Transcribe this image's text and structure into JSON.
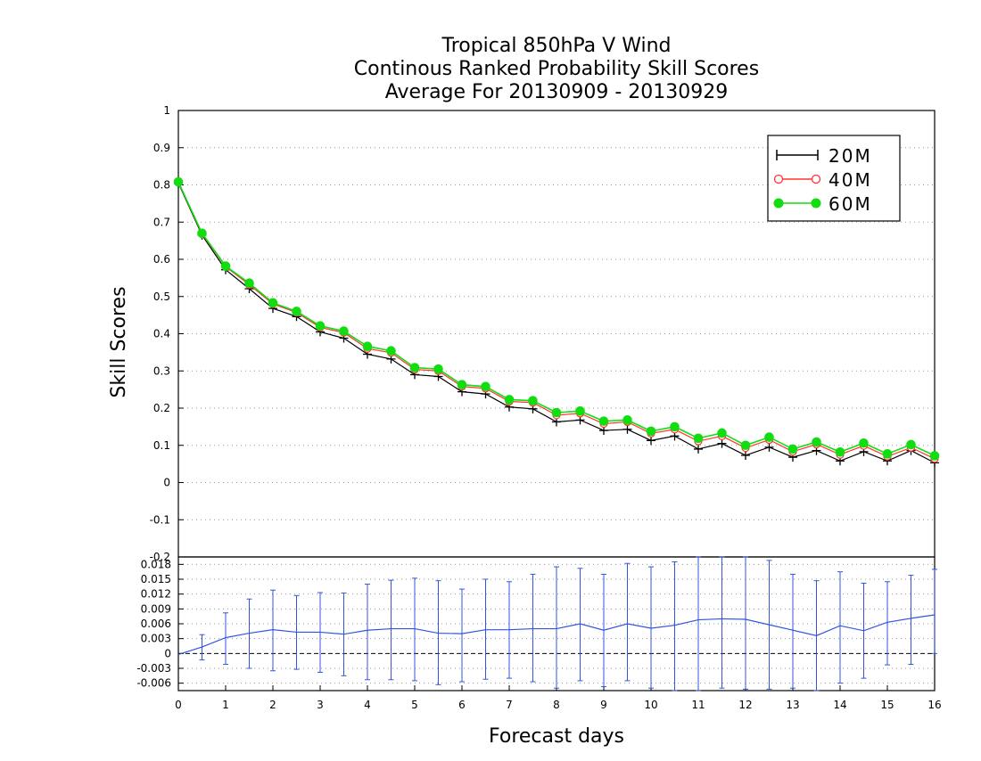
{
  "chart_data": [
    {
      "type": "line",
      "title": "Tropical 850hPa V Wind",
      "subtitle": "Continous Ranked Probability Skill Scores",
      "subtitle2": "Average For 20130909 - 20130929",
      "xlabel": "Forecast days",
      "ylabel": "Skill Scores",
      "xlim": [
        0,
        16
      ],
      "ylim": [
        -0.2,
        1
      ],
      "yticks": [
        "-0.2",
        "-0.1",
        "0",
        "0.1",
        "0.2",
        "0.3",
        "0.4",
        "0.5",
        "0.6",
        "0.7",
        "0.8",
        "0.9",
        "1"
      ],
      "grid": true,
      "legend_position": "top-right",
      "x": [
        0,
        0.5,
        1,
        1.5,
        2,
        2.5,
        3,
        3.5,
        4,
        4.5,
        5,
        5.5,
        6,
        6.5,
        7,
        7.5,
        8,
        8.5,
        9,
        9.5,
        10,
        10.5,
        11,
        11.5,
        12,
        12.5,
        13,
        13.5,
        14,
        14.5,
        15,
        15.5,
        16
      ],
      "series": [
        {
          "name": "20M",
          "color": "#000000",
          "marker": "plus",
          "values": [
            0.805,
            0.665,
            0.572,
            0.521,
            0.468,
            0.446,
            0.405,
            0.388,
            0.345,
            0.332,
            0.29,
            0.285,
            0.244,
            0.238,
            0.203,
            0.198,
            0.163,
            0.168,
            0.14,
            0.143,
            0.113,
            0.125,
            0.09,
            0.105,
            0.073,
            0.095,
            0.068,
            0.086,
            0.058,
            0.083,
            0.058,
            0.086,
            0.053
          ]
        },
        {
          "name": "40M",
          "color": "#ff3333",
          "marker": "open-circle",
          "values": [
            0.808,
            0.668,
            0.58,
            0.532,
            0.48,
            0.457,
            0.417,
            0.403,
            0.36,
            0.349,
            0.304,
            0.3,
            0.258,
            0.253,
            0.218,
            0.215,
            0.181,
            0.186,
            0.158,
            0.163,
            0.132,
            0.143,
            0.111,
            0.125,
            0.093,
            0.115,
            0.083,
            0.103,
            0.075,
            0.099,
            0.07,
            0.094,
            0.064
          ]
        },
        {
          "name": "60M",
          "color": "#11dd11",
          "marker": "filled-circle",
          "values": [
            0.808,
            0.67,
            0.582,
            0.536,
            0.483,
            0.46,
            0.421,
            0.407,
            0.366,
            0.354,
            0.309,
            0.305,
            0.263,
            0.258,
            0.223,
            0.22,
            0.188,
            0.192,
            0.165,
            0.168,
            0.138,
            0.15,
            0.119,
            0.133,
            0.1,
            0.122,
            0.09,
            0.109,
            0.082,
            0.106,
            0.077,
            0.102,
            0.072
          ]
        }
      ]
    },
    {
      "type": "line",
      "xlim": [
        0,
        16
      ],
      "ylim": [
        -0.0075,
        0.0195
      ],
      "xticks": [
        "0",
        "1",
        "2",
        "3",
        "4",
        "5",
        "6",
        "7",
        "8",
        "9",
        "10",
        "11",
        "12",
        "13",
        "14",
        "15",
        "16"
      ],
      "yticks": [
        "-0.006",
        "-0.003",
        "0",
        "0.003",
        "0.006",
        "0.009",
        "0.012",
        "0.015",
        "0.018"
      ],
      "grid": true,
      "zero_line": "dashed",
      "x": [
        0,
        0.5,
        1,
        1.5,
        2,
        2.5,
        3,
        3.5,
        4,
        4.5,
        5,
        5.5,
        6,
        6.5,
        7,
        7.5,
        8,
        8.5,
        9,
        9.5,
        10,
        10.5,
        11,
        11.5,
        12,
        12.5,
        13,
        13.5,
        14,
        14.5,
        15,
        15.5,
        16
      ],
      "series": [
        {
          "name": "",
          "color": "#3355dd",
          "values": [
            -0.0002,
            0.0013,
            0.0032,
            0.0041,
            0.0048,
            0.0043,
            0.0043,
            0.0039,
            0.0047,
            0.005,
            0.005,
            0.0041,
            0.004,
            0.0048,
            0.0048,
            0.005,
            0.005,
            0.006,
            0.0047,
            0.006,
            0.0051,
            0.0057,
            0.0068,
            0.007,
            0.0069,
            0.0058,
            0.0047,
            0.0036,
            0.0056,
            0.0046,
            0.0063,
            0.0071,
            0.0078
          ],
          "error_low": [
            0.0,
            -0.0013,
            -0.0022,
            -0.003,
            -0.0035,
            -0.0032,
            -0.0038,
            -0.0045,
            -0.0053,
            -0.0053,
            -0.0055,
            -0.0063,
            -0.0057,
            -0.0052,
            -0.005,
            -0.0057,
            -0.007,
            -0.0055,
            -0.0067,
            -0.0055,
            -0.007,
            -0.0075,
            -0.0075,
            -0.007,
            -0.0072,
            -0.0072,
            -0.007,
            -0.0075,
            -0.006,
            -0.005,
            -0.0023,
            -0.0022,
            0.0
          ],
          "error_high": [
            0.0,
            0.0038,
            0.0082,
            0.011,
            0.0128,
            0.0117,
            0.0123,
            0.0122,
            0.014,
            0.0148,
            0.0152,
            0.0147,
            0.013,
            0.015,
            0.0145,
            0.016,
            0.0175,
            0.0172,
            0.016,
            0.0182,
            0.0175,
            0.0185,
            0.0195,
            0.0195,
            0.0195,
            0.0188,
            0.016,
            0.0147,
            0.0165,
            0.0142,
            0.0145,
            0.0158,
            0.017
          ]
        }
      ]
    }
  ]
}
